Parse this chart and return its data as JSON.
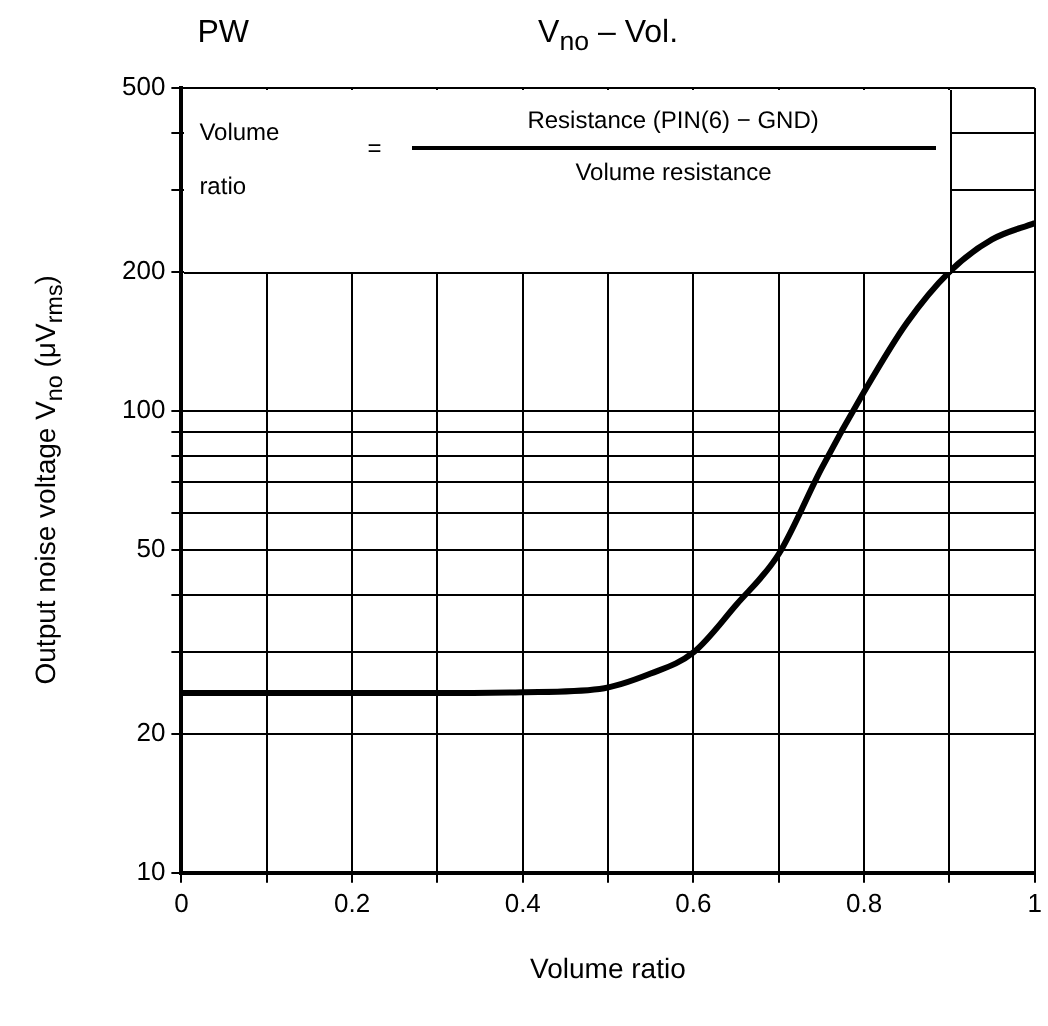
{
  "chart_data": {
    "type": "line",
    "title": "V$_{no}$ – Vol.",
    "xlabel": "Volume ratio",
    "ylabel": "Output noise voltage   V$_{no}$   (μV$_{rms}$)",
    "annotations": [
      "PW",
      "Volume ratio",
      "=",
      "Resistance (PIN(6) − GND)",
      "Volume resistance"
    ],
    "series": [
      {
        "color": "#000000",
        "x": [
          0,
          0.1,
          0.2,
          0.3,
          0.4,
          0.49,
          0.55,
          0.6,
          0.65,
          0.7,
          0.75,
          0.8,
          0.85,
          0.9,
          0.95,
          1.0
        ],
        "values": [
          24.5,
          24.5,
          24.5,
          24.5,
          24.6,
          25,
          27,
          30,
          38,
          49,
          75,
          110,
          155,
          200,
          235,
          255
        ]
      }
    ],
    "xlim": [
      0,
      1
    ],
    "xticks": [
      0,
      {
        "value": 0.1,
        "label": null
      },
      0.2,
      {
        "value": 0.3,
        "label": null
      },
      0.4,
      {
        "value": 0.5,
        "label": null
      },
      0.6,
      {
        "value": 0.7,
        "label": null
      },
      0.8,
      {
        "value": 0.9,
        "label": null
      },
      1
    ],
    "ylim": [
      10,
      500
    ],
    "yticks": [
      10,
      20,
      {
        "value": 30,
        "label": null
      },
      {
        "value": 40,
        "label": null
      },
      50,
      {
        "value": 60,
        "label": null
      },
      {
        "value": 70,
        "label": null
      },
      {
        "value": 80,
        "label": null
      },
      {
        "value": 90,
        "label": null
      },
      100,
      200,
      {
        "value": 300,
        "label": null
      },
      {
        "value": 400,
        "label": null
      },
      500
    ],
    "log": "y",
    "grid": true,
    "legend": false,
    "marker": "none",
    "line_style": "solid"
  }
}
